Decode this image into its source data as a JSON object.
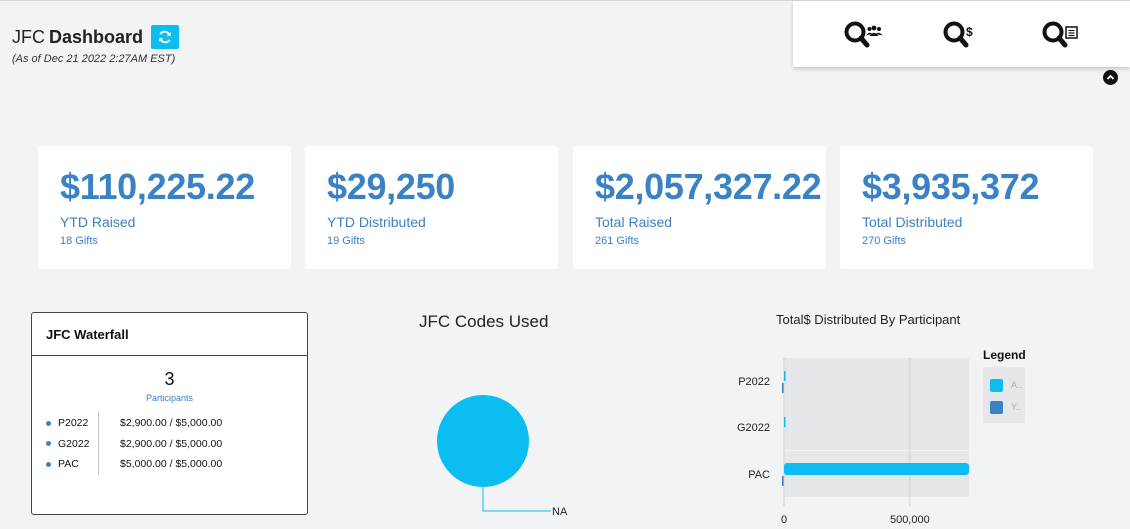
{
  "header": {
    "title_prefix": "JFC",
    "title_main": "Dashboard",
    "as_of": "(As of Dec 21 2022 2:27AM EST)"
  },
  "icons": {
    "refresh": "refresh-icon",
    "search_participants": "search-people-icon",
    "search_money": "search-dollar-icon",
    "search_list": "search-list-icon",
    "collapse": "chevron-up-icon"
  },
  "stats": [
    {
      "value": "$110,225.22",
      "label": "YTD Raised",
      "sub": "18 Gifts"
    },
    {
      "value": "$29,250",
      "label": "YTD Distributed",
      "sub": "19 Gifts"
    },
    {
      "value": "$2,057,327.22",
      "label": "Total Raised",
      "sub": "261 Gifts"
    },
    {
      "value": "$3,935,372",
      "label": "Total Distributed",
      "sub": "270 Gifts"
    }
  ],
  "waterfall": {
    "title": "JFC Waterfall",
    "count": "3",
    "count_label": "Participants",
    "rows": [
      {
        "name": "P2022",
        "amount": "$2,900.00 / $5,000.00"
      },
      {
        "name": "G2022",
        "amount": "$2,900.00 / $5,000.00"
      },
      {
        "name": "PAC",
        "amount": "$5,000.00 / $5,000.00"
      }
    ]
  },
  "colors": {
    "accent": "#3a82c4",
    "cyan": "#0bbdf0",
    "bar_bg": "#e6e7ea"
  },
  "chart_data": [
    {
      "type": "pie",
      "title": "JFC Codes Used",
      "categories": [
        "NA"
      ],
      "values": [
        1
      ],
      "labels": [
        "NA"
      ],
      "colors": [
        "#0bbdf0"
      ]
    },
    {
      "type": "bar",
      "orientation": "horizontal",
      "title": "Total$ Distributed By Participant",
      "categories": [
        "P2022",
        "G2022",
        "PAC"
      ],
      "series": [
        {
          "name": "A..",
          "values": [
            2900,
            2900,
            735000
          ],
          "color": "#0bbdf0"
        },
        {
          "name": "Y..",
          "values": [
            2900,
            0,
            5000
          ],
          "color": "#3a82c4"
        }
      ],
      "x_ticks": [
        0,
        500000
      ],
      "x_tick_labels": [
        "0",
        "500,000"
      ],
      "xlim": [
        0,
        735000
      ],
      "legend": {
        "title": "Legend",
        "position": "right"
      }
    }
  ]
}
